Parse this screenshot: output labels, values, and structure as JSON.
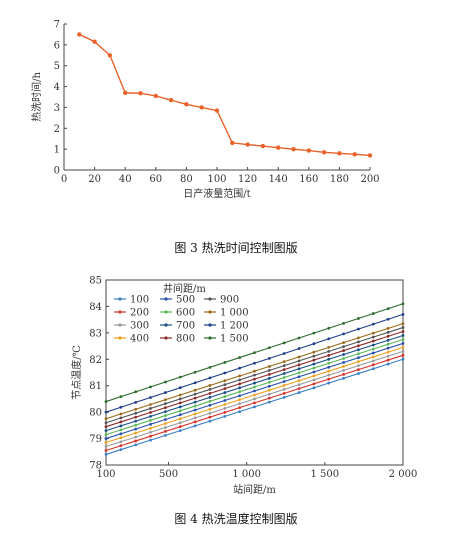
{
  "charts": [
    {
      "caption": "图 3 热洗时间控制图版",
      "chart_data": {
        "type": "line",
        "xlabel": "日产液量范围/t",
        "ylabel": "热洗时间/h",
        "xlim": [
          0,
          200
        ],
        "ylim": [
          0,
          7
        ],
        "xticks": [
          "0",
          "20",
          "40",
          "60",
          "80",
          "100",
          "120",
          "140",
          "160",
          "180",
          "200"
        ],
        "yticks": [
          "0",
          "1",
          "2",
          "3",
          "4",
          "5",
          "6",
          "7"
        ],
        "color": "#e8622a",
        "series": [
          {
            "x": [
              10,
              20,
              30,
              40,
              50,
              60,
              70,
              80,
              90,
              100,
              110,
              120,
              130,
              140,
              150,
              160,
              170,
              180,
              190,
              200
            ],
            "values": [
              6.5,
              6.15,
              5.5,
              3.7,
              3.68,
              3.55,
              3.35,
              3.15,
              3.0,
              2.85,
              1.3,
              1.22,
              1.15,
              1.07,
              1.0,
              0.93,
              0.85,
              0.8,
              0.75,
              0.7
            ]
          }
        ]
      }
    },
    {
      "caption": "图 4 热洗温度控制图版",
      "chart_data": {
        "type": "line",
        "xlabel": "站间距/m",
        "ylabel": "节点温度/℃",
        "legend_title": "井间距/m",
        "legend_position": "top-left",
        "xlim": [
          100,
          2000
        ],
        "ylim": [
          78,
          85
        ],
        "xticks": [
          {
            "label": "100",
            "value": 100
          },
          {
            "label": "500",
            "value": 500
          },
          {
            "label": "1 000",
            "value": 1000
          },
          {
            "label": "1 500",
            "value": 1500
          },
          {
            "label": "2 000",
            "value": 2000
          }
        ],
        "yticks": [
          "78",
          "79",
          "80",
          "81",
          "82",
          "83",
          "84",
          "85"
        ],
        "x": [
          100,
          2000
        ],
        "series": [
          {
            "name": "100",
            "color": "#3c7fc7",
            "values": [
              78.4,
              82.0
            ]
          },
          {
            "name": "200",
            "color": "#d8312a",
            "values": [
              78.55,
              82.15
            ]
          },
          {
            "name": "300",
            "color": "#9a9a9a",
            "values": [
              78.7,
              82.3
            ]
          },
          {
            "name": "400",
            "color": "#f0a020",
            "values": [
              78.85,
              82.45
            ]
          },
          {
            "name": "500",
            "color": "#2a52a8",
            "values": [
              79.0,
              82.6
            ]
          },
          {
            "name": "600",
            "color": "#5cb85c",
            "values": [
              79.15,
              82.75
            ]
          },
          {
            "name": "700",
            "color": "#1a4f86",
            "values": [
              79.3,
              82.9
            ]
          },
          {
            "name": "800",
            "color": "#8e2a2a",
            "values": [
              79.45,
              83.05
            ]
          },
          {
            "name": "900",
            "color": "#555555",
            "values": [
              79.6,
              83.2
            ]
          },
          {
            "name": "1 000",
            "color": "#9a6a1a",
            "values": [
              79.75,
              83.35
            ]
          },
          {
            "name": "1 200",
            "color": "#1f3f8a",
            "values": [
              80.0,
              83.7
            ]
          },
          {
            "name": "1 500",
            "color": "#2e6b2e",
            "values": [
              80.4,
              84.1
            ]
          }
        ]
      }
    }
  ]
}
